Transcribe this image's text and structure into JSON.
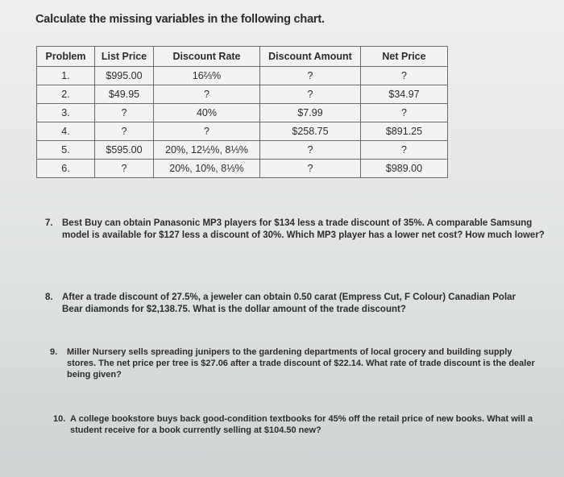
{
  "title": "Calculate the missing variables in the following chart.",
  "table": {
    "headers": [
      "Problem",
      "List Price",
      "Discount Rate",
      "Discount Amount",
      "Net Price"
    ],
    "rows": [
      [
        "1.",
        "$995.00",
        "16⅔%",
        "?",
        "?"
      ],
      [
        "2.",
        "$49.95",
        "?",
        "?",
        "$34.97"
      ],
      [
        "3.",
        "?",
        "40%",
        "$7.99",
        "?"
      ],
      [
        "4.",
        "?",
        "?",
        "$258.75",
        "$891.25"
      ],
      [
        "5.",
        "$595.00",
        "20%, 12½%, 8⅓%",
        "?",
        "?"
      ],
      [
        "6.",
        "?",
        "20%, 10%, 8⅓%",
        "?",
        "$989.00"
      ]
    ]
  },
  "questions": [
    {
      "num": "7.",
      "text": "Best Buy can obtain Panasonic MP3 players for $134 less a trade discount of 35%. A comparable Samsung model is available for $127 less a discount of 30%. Which MP3 player has a lower net cost? How much lower?"
    },
    {
      "num": "8.",
      "text": "After a trade discount of 27.5%, a jeweler can obtain 0.50 carat (Empress Cut, F Colour) Canadian Polar Bear diamonds for $2,138.75. What is the dollar amount of the trade discount?"
    },
    {
      "num": "9.",
      "text": "Miller Nursery sells spreading junipers to the gardening departments of local grocery and building supply stores. The net price per tree is $27.06 after a trade discount of $22.14. What rate of trade discount is the dealer being given?"
    },
    {
      "num": "10.",
      "text": "A college bookstore buys back good-condition textbooks for 45% off the retail price of new books. What will a student receive for a book currently selling at $104.50 new?"
    }
  ]
}
